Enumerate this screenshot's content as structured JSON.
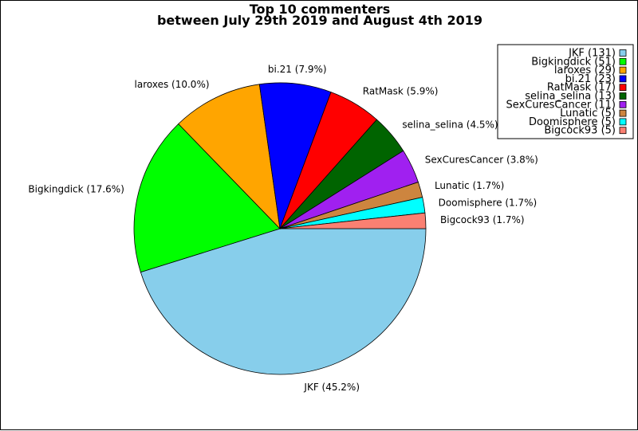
{
  "chart_data": {
    "type": "pie",
    "title": [
      "Top 10 commenters",
      "between July 29th 2019 and August 4th 2019"
    ],
    "slices": [
      {
        "name": "JKF",
        "value": 131,
        "percent": "45.2%",
        "color": "#87ceeb"
      },
      {
        "name": "Bigkingdick",
        "value": 51,
        "percent": "17.6%",
        "color": "#00ff00"
      },
      {
        "name": "laroxes",
        "value": 29,
        "percent": "10.0%",
        "color": "#ffa500"
      },
      {
        "name": "bi.21",
        "value": 23,
        "percent": "7.9%",
        "color": "#0000ff"
      },
      {
        "name": "RatMask",
        "value": 17,
        "percent": "5.9%",
        "color": "#ff0000"
      },
      {
        "name": "selina_selina",
        "value": 13,
        "percent": "4.5%",
        "color": "#006400"
      },
      {
        "name": "SexCuresCancer",
        "value": 11,
        "percent": "3.8%",
        "color": "#a020f0"
      },
      {
        "name": "Lunatic",
        "value": 5,
        "percent": "1.7%",
        "color": "#cd853f"
      },
      {
        "name": "Doomisphere",
        "value": 5,
        "percent": "1.7%",
        "color": "#00ffff"
      },
      {
        "name": "Bigcock93",
        "value": 5,
        "percent": "1.7%",
        "color": "#fa8072"
      }
    ],
    "start_angle": "0 degrees (3 o'clock)",
    "direction": "clockwise",
    "legend": {
      "position": "top-right"
    }
  }
}
